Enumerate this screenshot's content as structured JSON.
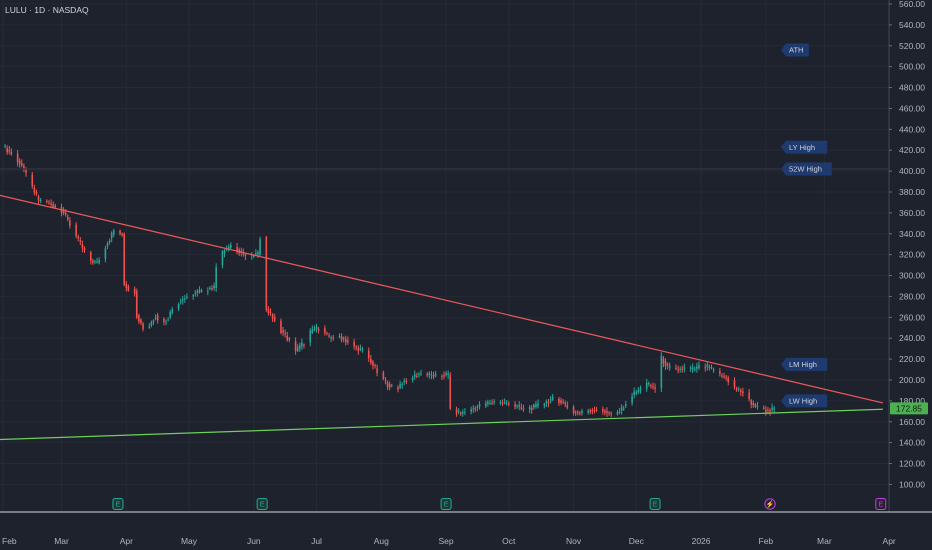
{
  "title": "LULU · 1D · NASDAQ",
  "colors": {
    "background": "#1e222d",
    "up": "#26a69a",
    "down": "#ef5350",
    "resistance": "#f05a5a",
    "support": "#6fcf5c",
    "tag_bg": "#1f3a6e",
    "price_label": "#4caf50",
    "earnings": "#26a69a",
    "dividend": "#c040e0"
  },
  "chart_data": {
    "type": "candlestick",
    "ylim": [
      87,
      560
    ],
    "y_ticks": [
      100,
      120,
      140,
      160,
      180,
      200,
      220,
      240,
      260,
      280,
      300,
      320,
      340,
      360,
      380,
      400,
      420,
      440,
      460,
      480,
      500,
      520,
      540,
      560
    ],
    "y_tick_labels": [
      "100.00",
      "120.00",
      "140.00",
      "160.00",
      "180.00",
      "200.00",
      "220.00",
      "240.00",
      "260.00",
      "280.00",
      "300.00",
      "320.00",
      "340.00",
      "360.00",
      "380.00",
      "400.00",
      "420.00",
      "440.00",
      "460.00",
      "480.00",
      "500.00",
      "520.00",
      "540.00",
      "560.00"
    ],
    "x_labels": [
      "Feb",
      "Mar",
      "Apr",
      "May",
      "Jun",
      "Jul",
      "Aug",
      "Sep",
      "Oct",
      "Nov",
      "Dec",
      "2026",
      "Feb",
      "Mar",
      "Apr"
    ],
    "x_label_days": [
      0,
      28,
      59,
      89,
      120,
      150,
      181,
      212,
      242,
      273,
      303,
      334,
      365,
      393,
      424
    ],
    "last_price": "172.85",
    "last_price_value": 172.85,
    "key_levels": [
      {
        "label": "ATH",
        "value": 516
      },
      {
        "label": "LY High",
        "value": 423
      },
      {
        "label": "52W High",
        "value": 402
      },
      {
        "label": "LM High",
        "value": 215
      },
      {
        "label": "LW High",
        "value": 180
      }
    ],
    "trendlines": [
      {
        "name": "resistance",
        "from": [
          -2,
          377
        ],
        "to": [
          421,
          178
        ]
      },
      {
        "name": "support",
        "from": [
          -2,
          143
        ],
        "to": [
          421,
          172
        ]
      }
    ],
    "events": [
      {
        "type": "earnings",
        "label": "E",
        "day": 55
      },
      {
        "type": "earnings",
        "label": "E",
        "day": 124
      },
      {
        "type": "earnings",
        "label": "E",
        "day": 212
      },
      {
        "type": "earnings",
        "label": "E",
        "day": 312
      },
      {
        "type": "dividend",
        "label": "⚡",
        "day": 367
      },
      {
        "type": "earnings-upcoming",
        "label": "E",
        "day": 420
      }
    ],
    "anchors": [
      [
        1,
        422
      ],
      [
        5,
        415
      ],
      [
        9,
        405
      ],
      [
        13,
        388
      ],
      [
        17,
        372
      ],
      [
        21,
        370
      ],
      [
        25,
        366
      ],
      [
        29,
        360
      ],
      [
        33,
        345
      ],
      [
        37,
        330
      ],
      [
        41,
        315
      ],
      [
        45,
        312
      ],
      [
        49,
        328
      ],
      [
        53,
        343
      ],
      [
        56,
        340
      ],
      [
        58,
        292
      ],
      [
        61,
        285
      ],
      [
        64,
        262
      ],
      [
        67,
        250
      ],
      [
        70,
        252
      ],
      [
        73,
        262
      ],
      [
        76,
        252
      ],
      [
        79,
        260
      ],
      [
        82,
        272
      ],
      [
        85,
        276
      ],
      [
        88,
        280
      ],
      [
        91,
        283
      ],
      [
        95,
        285
      ],
      [
        99,
        288
      ],
      [
        102,
        310
      ],
      [
        106,
        325
      ],
      [
        110,
        328
      ],
      [
        114,
        322
      ],
      [
        118,
        316
      ],
      [
        120,
        320
      ],
      [
        123,
        337
      ],
      [
        125,
        339
      ],
      [
        126,
        268
      ],
      [
        129,
        260
      ],
      [
        132,
        250
      ],
      [
        136,
        240
      ],
      [
        140,
        228
      ],
      [
        144,
        236
      ],
      [
        148,
        248
      ],
      [
        152,
        250
      ],
      [
        156,
        240
      ],
      [
        160,
        243
      ],
      [
        164,
        238
      ],
      [
        168,
        232
      ],
      [
        172,
        228
      ],
      [
        176,
        218
      ],
      [
        180,
        204
      ],
      [
        184,
        196
      ],
      [
        188,
        190
      ],
      [
        191,
        198
      ],
      [
        195,
        202
      ],
      [
        199,
        206
      ],
      [
        203,
        205
      ],
      [
        207,
        204
      ],
      [
        212,
        205
      ],
      [
        214,
        172
      ],
      [
        219,
        168
      ],
      [
        224,
        172
      ],
      [
        229,
        176
      ],
      [
        234,
        179
      ],
      [
        239,
        178
      ],
      [
        244,
        176
      ],
      [
        249,
        172
      ],
      [
        254,
        174
      ],
      [
        259,
        178
      ],
      [
        264,
        183
      ],
      [
        268,
        178
      ],
      [
        272,
        170
      ],
      [
        276,
        168
      ],
      [
        280,
        171
      ],
      [
        284,
        172
      ],
      [
        288,
        170
      ],
      [
        292,
        166
      ],
      [
        296,
        172
      ],
      [
        300,
        184
      ],
      [
        304,
        190
      ],
      [
        308,
        196
      ],
      [
        312,
        192
      ],
      [
        314,
        224
      ],
      [
        318,
        212
      ],
      [
        322,
        210
      ],
      [
        326,
        211
      ],
      [
        330,
        210
      ],
      [
        334,
        213
      ],
      [
        338,
        212
      ],
      [
        342,
        205
      ],
      [
        346,
        202
      ],
      [
        350,
        192
      ],
      [
        354,
        188
      ],
      [
        358,
        178
      ],
      [
        362,
        172
      ],
      [
        366,
        171
      ],
      [
        369,
        172
      ]
    ]
  }
}
